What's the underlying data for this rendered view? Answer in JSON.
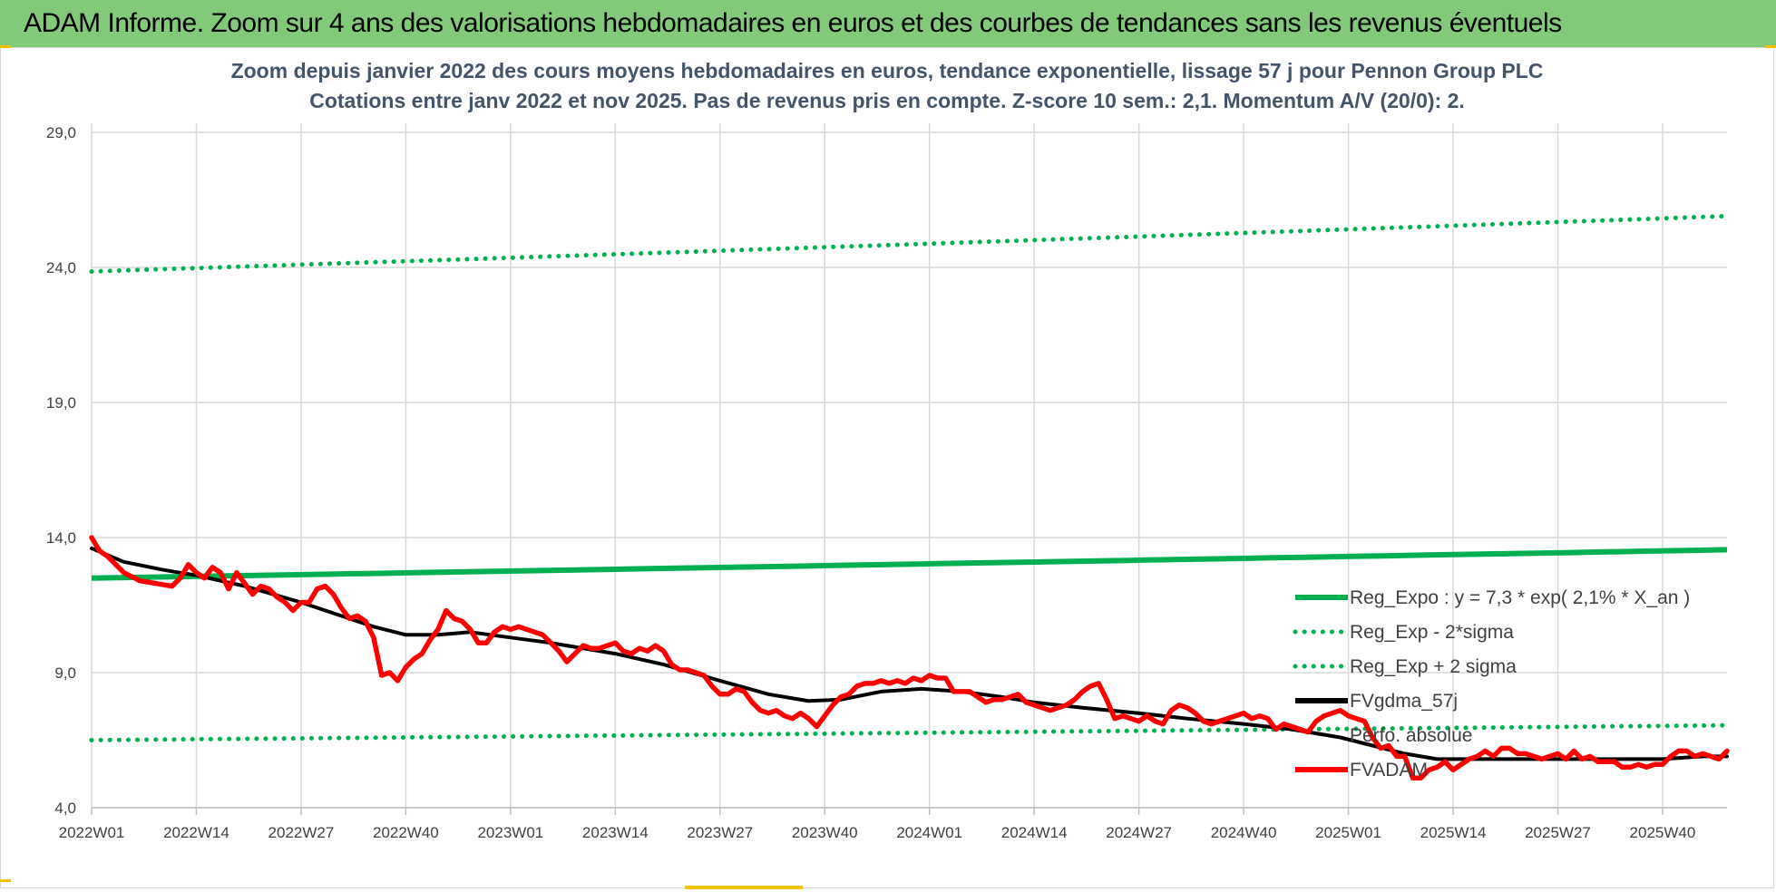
{
  "banner": {
    "title": "ADAM Informe. Zoom sur 4 ans des valorisations hebdomadaires en euros et des courbes de tendances sans les revenus éventuels"
  },
  "colors": {
    "banner_bg": "#82c97a",
    "reg_expo": "#00b050",
    "band": "#00b050",
    "fvgdma": "#000000",
    "fvadam": "#ff0000",
    "grid": "#d9d9d9",
    "axis_text": "#404040",
    "title_text": "#44546a"
  },
  "chart_data": {
    "type": "line",
    "title": "Zoom depuis janvier 2022 des cours moyens hebdomadaires en euros, tendance exponentielle, lissage 57 j pour Pennon Group PLC",
    "subtitle": "Cotations entre janv 2022 et nov 2025. Pas de revenus pris en compte. Z-score 10 sem.: 2,1. Momentum A/V (20/0): 2.",
    "xlabel": "",
    "ylabel": "",
    "ylim": [
      4.0,
      29.0
    ],
    "y_ticks": [
      "4,0",
      "9,0",
      "14,0",
      "19,0",
      "24,0",
      "29,0"
    ],
    "x_ticks": [
      "2022W01",
      "2022W14",
      "2022W27",
      "2022W40",
      "2023W01",
      "2023W14",
      "2023W27",
      "2023W40",
      "2024W01",
      "2024W14",
      "2024W27",
      "2024W40",
      "2025W01",
      "2025W14",
      "2025W27",
      "2025W40"
    ],
    "grid": true,
    "legend_position": "bottom-right",
    "x_start_week": "2022W01",
    "x_end_week": "2025W48",
    "series": [
      {
        "name": "Reg_Expo : y = 7,3 * exp( 2,1% *  X_an )",
        "style": "solid",
        "start_end": [
          12.5,
          13.55
        ]
      },
      {
        "name": "Reg_Exp - 2*sigma",
        "style": "dotted",
        "start_end": [
          6.5,
          7.05
        ]
      },
      {
        "name": "Reg_Exp + 2 sigma",
        "style": "dotted",
        "start_end": [
          23.85,
          25.9
        ]
      },
      {
        "name": "FVgdma_57j",
        "style": "solid",
        "points": [
          [
            "2022W01",
            13.6
          ],
          [
            "2022W05",
            13.1
          ],
          [
            "2022W10",
            12.8
          ],
          [
            "2022W14",
            12.6
          ],
          [
            "2022W20",
            12.2
          ],
          [
            "2022W27",
            11.6
          ],
          [
            "2022W32",
            11.1
          ],
          [
            "2022W36",
            10.7
          ],
          [
            "2022W40",
            10.4
          ],
          [
            "2022W44",
            10.4
          ],
          [
            "2022W48",
            10.5
          ],
          [
            "2023W01",
            10.3
          ],
          [
            "2023W06",
            10.1
          ],
          [
            "2023W10",
            9.9
          ],
          [
            "2023W14",
            9.7
          ],
          [
            "2023W20",
            9.3
          ],
          [
            "2023W27",
            8.7
          ],
          [
            "2023W33",
            8.2
          ],
          [
            "2023W38",
            7.95
          ],
          [
            "2023W42",
            8.0
          ],
          [
            "2023W47",
            8.3
          ],
          [
            "2023W52",
            8.4
          ],
          [
            "2024W05",
            8.3
          ],
          [
            "2024W10",
            8.1
          ],
          [
            "2024W14",
            7.9
          ],
          [
            "2024W20",
            7.7
          ],
          [
            "2024W27",
            7.5
          ],
          [
            "2024W33",
            7.3
          ],
          [
            "2024W40",
            7.1
          ],
          [
            "2024W46",
            6.9
          ],
          [
            "2024W52",
            6.6
          ],
          [
            "2025W04",
            6.3
          ],
          [
            "2025W08",
            6.0
          ],
          [
            "2025W12",
            5.8
          ],
          [
            "2025W20",
            5.8
          ],
          [
            "2025W30",
            5.8
          ],
          [
            "2025W40",
            5.8
          ],
          [
            "2025W45",
            5.9
          ],
          [
            "2025W48",
            5.9
          ]
        ]
      },
      {
        "name": "Perfo. absolue",
        "style": "none",
        "points": []
      },
      {
        "name": "FVADAM",
        "style": "solid",
        "points": [
          [
            "2022W01",
            14.0
          ],
          [
            "2022W02",
            13.5
          ],
          [
            "2022W03",
            13.3
          ],
          [
            "2022W05",
            12.7
          ],
          [
            "2022W07",
            12.4
          ],
          [
            "2022W09",
            12.3
          ],
          [
            "2022W11",
            12.2
          ],
          [
            "2022W12",
            12.5
          ],
          [
            "2022W13",
            13.0
          ],
          [
            "2022W14",
            12.7
          ],
          [
            "2022W15",
            12.5
          ],
          [
            "2022W16",
            12.9
          ],
          [
            "2022W17",
            12.7
          ],
          [
            "2022W18",
            12.1
          ],
          [
            "2022W19",
            12.7
          ],
          [
            "2022W20",
            12.3
          ],
          [
            "2022W21",
            11.9
          ],
          [
            "2022W22",
            12.2
          ],
          [
            "2022W23",
            12.1
          ],
          [
            "2022W24",
            11.8
          ],
          [
            "2022W25",
            11.6
          ],
          [
            "2022W26",
            11.3
          ],
          [
            "2022W27",
            11.6
          ],
          [
            "2022W28",
            11.6
          ],
          [
            "2022W29",
            12.1
          ],
          [
            "2022W30",
            12.2
          ],
          [
            "2022W31",
            11.9
          ],
          [
            "2022W32",
            11.4
          ],
          [
            "2022W33",
            11.0
          ],
          [
            "2022W34",
            11.1
          ],
          [
            "2022W35",
            10.9
          ],
          [
            "2022W36",
            10.3
          ],
          [
            "2022W37",
            8.9
          ],
          [
            "2022W38",
            9.0
          ],
          [
            "2022W39",
            8.7
          ],
          [
            "2022W40",
            9.2
          ],
          [
            "2022W41",
            9.5
          ],
          [
            "2022W42",
            9.7
          ],
          [
            "2022W43",
            10.2
          ],
          [
            "2022W44",
            10.6
          ],
          [
            "2022W45",
            11.3
          ],
          [
            "2022W46",
            11.0
          ],
          [
            "2022W47",
            10.9
          ],
          [
            "2022W48",
            10.6
          ],
          [
            "2022W49",
            10.1
          ],
          [
            "2022W50",
            10.1
          ],
          [
            "2022W51",
            10.5
          ],
          [
            "2022W52",
            10.7
          ],
          [
            "2023W01",
            10.6
          ],
          [
            "2023W02",
            10.7
          ],
          [
            "2023W03",
            10.6
          ],
          [
            "2023W04",
            10.5
          ],
          [
            "2023W05",
            10.4
          ],
          [
            "2023W06",
            10.1
          ],
          [
            "2023W07",
            9.8
          ],
          [
            "2023W08",
            9.4
          ],
          [
            "2023W09",
            9.7
          ],
          [
            "2023W10",
            10.0
          ],
          [
            "2023W11",
            9.9
          ],
          [
            "2023W12",
            9.9
          ],
          [
            "2023W13",
            10.0
          ],
          [
            "2023W14",
            10.1
          ],
          [
            "2023W15",
            9.8
          ],
          [
            "2023W16",
            9.7
          ],
          [
            "2023W17",
            9.9
          ],
          [
            "2023W18",
            9.8
          ],
          [
            "2023W19",
            10.0
          ],
          [
            "2023W20",
            9.8
          ],
          [
            "2023W21",
            9.3
          ],
          [
            "2023W22",
            9.1
          ],
          [
            "2023W23",
            9.1
          ],
          [
            "2023W24",
            9.0
          ],
          [
            "2023W25",
            8.9
          ],
          [
            "2023W26",
            8.5
          ],
          [
            "2023W27",
            8.2
          ],
          [
            "2023W28",
            8.2
          ],
          [
            "2023W29",
            8.4
          ],
          [
            "2023W30",
            8.3
          ],
          [
            "2023W31",
            7.9
          ],
          [
            "2023W32",
            7.6
          ],
          [
            "2023W33",
            7.5
          ],
          [
            "2023W34",
            7.6
          ],
          [
            "2023W35",
            7.4
          ],
          [
            "2023W36",
            7.3
          ],
          [
            "2023W37",
            7.5
          ],
          [
            "2023W38",
            7.3
          ],
          [
            "2023W39",
            7.0
          ],
          [
            "2023W40",
            7.4
          ],
          [
            "2023W41",
            7.8
          ],
          [
            "2023W42",
            8.1
          ],
          [
            "2023W43",
            8.2
          ],
          [
            "2023W44",
            8.5
          ],
          [
            "2023W45",
            8.6
          ],
          [
            "2023W46",
            8.6
          ],
          [
            "2023W47",
            8.7
          ],
          [
            "2023W48",
            8.6
          ],
          [
            "2023W49",
            8.7
          ],
          [
            "2023W50",
            8.6
          ],
          [
            "2023W51",
            8.8
          ],
          [
            "2023W52",
            8.7
          ],
          [
            "2024W01",
            8.9
          ],
          [
            "2024W02",
            8.8
          ],
          [
            "2024W03",
            8.8
          ],
          [
            "2024W04",
            8.3
          ],
          [
            "2024W05",
            8.3
          ],
          [
            "2024W06",
            8.3
          ],
          [
            "2024W07",
            8.1
          ],
          [
            "2024W08",
            7.9
          ],
          [
            "2024W09",
            8.0
          ],
          [
            "2024W10",
            8.0
          ],
          [
            "2024W11",
            8.1
          ],
          [
            "2024W12",
            8.2
          ],
          [
            "2024W13",
            7.9
          ],
          [
            "2024W14",
            7.8
          ],
          [
            "2024W15",
            7.7
          ],
          [
            "2024W16",
            7.6
          ],
          [
            "2024W17",
            7.7
          ],
          [
            "2024W18",
            7.8
          ],
          [
            "2024W19",
            8.0
          ],
          [
            "2024W20",
            8.3
          ],
          [
            "2024W21",
            8.5
          ],
          [
            "2024W22",
            8.6
          ],
          [
            "2024W23",
            8.0
          ],
          [
            "2024W24",
            7.3
          ],
          [
            "2024W25",
            7.4
          ],
          [
            "2024W26",
            7.3
          ],
          [
            "2024W27",
            7.2
          ],
          [
            "2024W28",
            7.4
          ],
          [
            "2024W29",
            7.2
          ],
          [
            "2024W30",
            7.1
          ],
          [
            "2024W31",
            7.6
          ],
          [
            "2024W32",
            7.8
          ],
          [
            "2024W33",
            7.7
          ],
          [
            "2024W34",
            7.5
          ],
          [
            "2024W35",
            7.2
          ],
          [
            "2024W36",
            7.1
          ],
          [
            "2024W37",
            7.2
          ],
          [
            "2024W38",
            7.3
          ],
          [
            "2024W39",
            7.4
          ],
          [
            "2024W40",
            7.5
          ],
          [
            "2024W41",
            7.3
          ],
          [
            "2024W42",
            7.4
          ],
          [
            "2024W43",
            7.3
          ],
          [
            "2024W44",
            6.9
          ],
          [
            "2024W45",
            7.1
          ],
          [
            "2024W46",
            7.0
          ],
          [
            "2024W47",
            6.9
          ],
          [
            "2024W48",
            6.8
          ],
          [
            "2024W49",
            7.2
          ],
          [
            "2024W50",
            7.4
          ],
          [
            "2024W51",
            7.5
          ],
          [
            "2024W52",
            7.6
          ],
          [
            "2025W01",
            7.4
          ],
          [
            "2025W02",
            7.3
          ],
          [
            "2025W03",
            7.2
          ],
          [
            "2025W04",
            6.6
          ],
          [
            "2025W05",
            6.2
          ],
          [
            "2025W06",
            6.3
          ],
          [
            "2025W07",
            5.9
          ],
          [
            "2025W08",
            5.9
          ],
          [
            "2025W09",
            5.1
          ],
          [
            "2025W10",
            5.1
          ],
          [
            "2025W11",
            5.4
          ],
          [
            "2025W12",
            5.5
          ],
          [
            "2025W13",
            5.7
          ],
          [
            "2025W14",
            5.4
          ],
          [
            "2025W15",
            5.6
          ],
          [
            "2025W16",
            5.8
          ],
          [
            "2025W17",
            5.9
          ],
          [
            "2025W18",
            6.1
          ],
          [
            "2025W19",
            5.9
          ],
          [
            "2025W20",
            6.2
          ],
          [
            "2025W21",
            6.2
          ],
          [
            "2025W22",
            6.0
          ],
          [
            "2025W23",
            6.0
          ],
          [
            "2025W24",
            5.9
          ],
          [
            "2025W25",
            5.8
          ],
          [
            "2025W26",
            5.9
          ],
          [
            "2025W27",
            6.0
          ],
          [
            "2025W28",
            5.8
          ],
          [
            "2025W29",
            6.1
          ],
          [
            "2025W30",
            5.8
          ],
          [
            "2025W31",
            5.9
          ],
          [
            "2025W32",
            5.7
          ],
          [
            "2025W33",
            5.7
          ],
          [
            "2025W34",
            5.7
          ],
          [
            "2025W35",
            5.5
          ],
          [
            "2025W36",
            5.5
          ],
          [
            "2025W37",
            5.6
          ],
          [
            "2025W38",
            5.5
          ],
          [
            "2025W39",
            5.6
          ],
          [
            "2025W40",
            5.6
          ],
          [
            "2025W41",
            5.9
          ],
          [
            "2025W42",
            6.1
          ],
          [
            "2025W43",
            6.1
          ],
          [
            "2025W44",
            5.9
          ],
          [
            "2025W45",
            6.0
          ],
          [
            "2025W46",
            5.9
          ],
          [
            "2025W47",
            5.8
          ],
          [
            "2025W48",
            6.1
          ]
        ]
      }
    ]
  }
}
